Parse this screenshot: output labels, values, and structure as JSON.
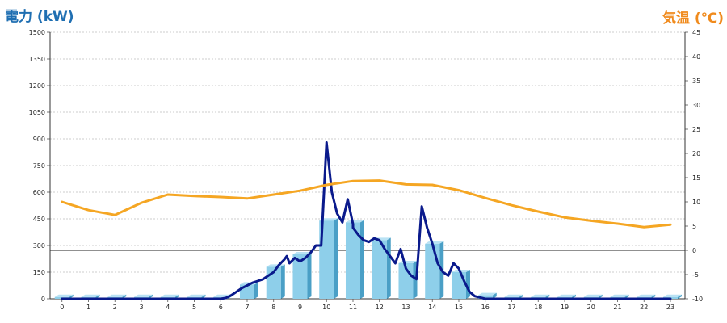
{
  "chart_data": {
    "type": "bar+line",
    "y_left_label": "電力 (kW)",
    "y_right_label": "気温 (℃)",
    "x_ticks": [
      "0",
      "1",
      "2",
      "3",
      "4",
      "5",
      "6",
      "7",
      "8",
      "9",
      "10",
      "11",
      "12",
      "13",
      "14",
      "15",
      "16",
      "17",
      "18",
      "19",
      "20",
      "21",
      "22",
      "23"
    ],
    "y_left_ticks": [
      "0",
      "150",
      "300",
      "450",
      "600",
      "750",
      "900",
      "1050",
      "1200",
      "1350",
      "1500"
    ],
    "y_right_ticks": [
      "-10",
      "-5",
      "0",
      "5",
      "10",
      "15",
      "20",
      "25",
      "30",
      "35",
      "40",
      "45"
    ],
    "y_left_range": [
      0,
      1500
    ],
    "y_right_range": [
      -10,
      45
    ],
    "grid": true,
    "series": [
      {
        "kind": "bar",
        "axis": "left",
        "color": "#8ecfea",
        "values": [
          10,
          10,
          10,
          10,
          10,
          10,
          10,
          80,
          180,
          250,
          440,
          430,
          330,
          200,
          310,
          150,
          20,
          10,
          10,
          10,
          10,
          10,
          10,
          10
        ]
      },
      {
        "kind": "line",
        "axis": "left",
        "color": "#0a1a8c",
        "points": [
          [
            0,
            0
          ],
          [
            1,
            0
          ],
          [
            2,
            0
          ],
          [
            3,
            0
          ],
          [
            4,
            0
          ],
          [
            5,
            0
          ],
          [
            6,
            0
          ],
          [
            6.2,
            5
          ],
          [
            6.4,
            20
          ],
          [
            6.6,
            40
          ],
          [
            6.8,
            60
          ],
          [
            7,
            75
          ],
          [
            7.2,
            90
          ],
          [
            7.4,
            100
          ],
          [
            7.6,
            110
          ],
          [
            7.8,
            130
          ],
          [
            8,
            150
          ],
          [
            8.2,
            190
          ],
          [
            8.4,
            220
          ],
          [
            8.5,
            240
          ],
          [
            8.6,
            200
          ],
          [
            8.8,
            230
          ],
          [
            9,
            210
          ],
          [
            9.2,
            230
          ],
          [
            9.4,
            260
          ],
          [
            9.6,
            300
          ],
          [
            9.8,
            300
          ],
          [
            10,
            880
          ],
          [
            10.2,
            600
          ],
          [
            10.4,
            480
          ],
          [
            10.6,
            430
          ],
          [
            10.8,
            560
          ],
          [
            11,
            420
          ],
          [
            11,
            400
          ],
          [
            11.2,
            360
          ],
          [
            11.4,
            330
          ],
          [
            11.6,
            320
          ],
          [
            11.8,
            340
          ],
          [
            12,
            330
          ],
          [
            12.2,
            280
          ],
          [
            12.4,
            240
          ],
          [
            12.6,
            200
          ],
          [
            12.8,
            280
          ],
          [
            13,
            170
          ],
          [
            13.2,
            130
          ],
          [
            13.4,
            110
          ],
          [
            13.6,
            520
          ],
          [
            13.8,
            400
          ],
          [
            14,
            310
          ],
          [
            14.2,
            200
          ],
          [
            14.4,
            150
          ],
          [
            14.6,
            130
          ],
          [
            14.8,
            200
          ],
          [
            15,
            170
          ],
          [
            15.2,
            100
          ],
          [
            15.4,
            40
          ],
          [
            15.6,
            15
          ],
          [
            16,
            0
          ],
          [
            17,
            0
          ],
          [
            18,
            0
          ],
          [
            19,
            0
          ],
          [
            20,
            0
          ],
          [
            21,
            0
          ],
          [
            22,
            0
          ],
          [
            23,
            0
          ]
        ]
      },
      {
        "kind": "line",
        "axis": "right",
        "color": "#f5a623",
        "points": [
          [
            0,
            10
          ],
          [
            1,
            8.3
          ],
          [
            2,
            7.3
          ],
          [
            3,
            9.8
          ],
          [
            4,
            11.5
          ],
          [
            5,
            11.2
          ],
          [
            6,
            11
          ],
          [
            7,
            10.7
          ],
          [
            8,
            11.5
          ],
          [
            9,
            12.3
          ],
          [
            10,
            13.5
          ],
          [
            11,
            14.3
          ],
          [
            12,
            14.4
          ],
          [
            13,
            13.6
          ],
          [
            14,
            13.5
          ],
          [
            15,
            12.4
          ],
          [
            16,
            10.8
          ],
          [
            17,
            9.3
          ],
          [
            18,
            8
          ],
          [
            19,
            6.8
          ],
          [
            20,
            6.1
          ],
          [
            21,
            5.5
          ],
          [
            22,
            4.8
          ],
          [
            23,
            5.3
          ]
        ]
      }
    ]
  }
}
